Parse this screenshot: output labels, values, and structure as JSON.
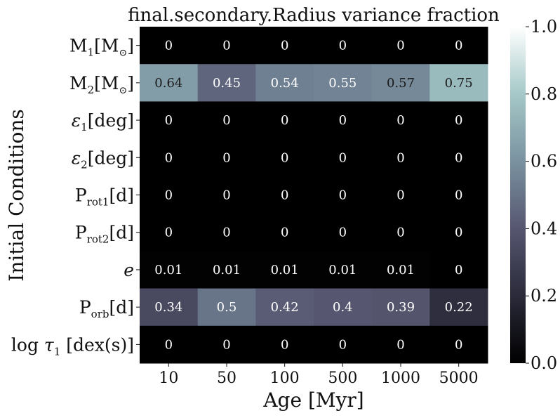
{
  "chart_data": {
    "type": "heatmap",
    "title": "final.secondary.Radius variance fraction",
    "xlabel": "Age [Myr]",
    "ylabel": "Initial Conditions",
    "x_categories": [
      "10",
      "50",
      "100",
      "500",
      "1000",
      "5000"
    ],
    "y_categories": [
      {
        "base": "M",
        "sub": "1",
        "suffix": "[M",
        "after": "]",
        "sun": true
      },
      {
        "base": "M",
        "sub": "2",
        "suffix": "[M",
        "after": "]",
        "sun": true
      },
      {
        "base": "ε",
        "sub": "1",
        "suffix": "[deg]",
        "after": "",
        "sun": false,
        "italic": true
      },
      {
        "base": "ε",
        "sub": "2",
        "suffix": "[deg]",
        "after": "",
        "sun": false,
        "italic": true
      },
      {
        "base": "P",
        "sub": "rot1",
        "suffix": "[d]",
        "after": "",
        "sun": false
      },
      {
        "base": "P",
        "sub": "rot2",
        "suffix": "[d]",
        "after": "",
        "sun": false
      },
      {
        "base": "e",
        "sub": "",
        "suffix": "",
        "after": "",
        "sun": false,
        "italic": true
      },
      {
        "base": "P",
        "sub": "orb",
        "suffix": "[d]",
        "after": "",
        "sun": false
      },
      {
        "base": "log τ",
        "sub": "1",
        "suffix": " [dex(s)]",
        "after": "",
        "sun": false,
        "log": true
      }
    ],
    "values": [
      [
        0,
        0,
        0,
        0,
        0,
        0
      ],
      [
        0.64,
        0.45,
        0.54,
        0.55,
        0.57,
        0.75
      ],
      [
        0,
        0,
        0,
        0,
        0,
        0
      ],
      [
        0,
        0,
        0,
        0,
        0,
        0
      ],
      [
        0,
        0,
        0,
        0,
        0,
        0
      ],
      [
        0,
        0,
        0,
        0,
        0,
        0
      ],
      [
        0.01,
        0.01,
        0.01,
        0.01,
        0.01,
        0
      ],
      [
        0.34,
        0.5,
        0.42,
        0.4,
        0.39,
        0.22
      ],
      [
        0,
        0,
        0,
        0,
        0,
        0
      ]
    ],
    "value_labels": [
      [
        "0",
        "0",
        "0",
        "0",
        "0",
        "0"
      ],
      [
        "0.64",
        "0.45",
        "0.54",
        "0.55",
        "0.57",
        "0.75"
      ],
      [
        "0",
        "0",
        "0",
        "0",
        "0",
        "0"
      ],
      [
        "0",
        "0",
        "0",
        "0",
        "0",
        "0"
      ],
      [
        "0",
        "0",
        "0",
        "0",
        "0",
        "0"
      ],
      [
        "0",
        "0",
        "0",
        "0",
        "0",
        "0"
      ],
      [
        "0.01",
        "0.01",
        "0.01",
        "0.01",
        "0.01",
        "0"
      ],
      [
        "0.34",
        "0.5",
        "0.42",
        "0.4",
        "0.39",
        "0.22"
      ],
      [
        "0",
        "0",
        "0",
        "0",
        "0",
        "0"
      ]
    ],
    "colorbar": {
      "range": [
        0.0,
        1.0
      ],
      "ticks": [
        0.0,
        0.2,
        0.4,
        0.6,
        0.8,
        1.0
      ],
      "tick_labels": [
        "0.0",
        "0.2",
        "0.4",
        "0.6",
        "0.8",
        "1.0"
      ],
      "colormap": "bone",
      "colormap_stops": [
        "#000000",
        "#2a2a3a",
        "#565670",
        "#7a92a0",
        "#a5c8c8",
        "#ffffff"
      ]
    },
    "grid": false,
    "legend": "none"
  }
}
